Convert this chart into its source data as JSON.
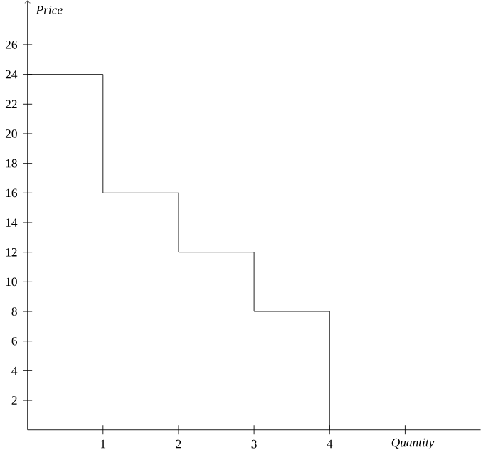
{
  "chart_data": {
    "type": "step",
    "xlabel": "Quantity",
    "ylabel": "Price",
    "x": [
      0,
      1,
      2,
      3,
      4
    ],
    "values": [
      24,
      16,
      12,
      8,
      0
    ],
    "color": "#000000",
    "xlim": [
      0,
      6
    ],
    "ylim": [
      0,
      29
    ],
    "xticks": [
      1,
      2,
      3,
      4,
      {
        "value": 5,
        "label": null
      }
    ],
    "yticks": [
      2,
      4,
      6,
      8,
      10,
      12,
      14,
      16,
      18,
      20,
      22,
      24,
      26
    ],
    "grid": false,
    "marker": "none",
    "line_style": "solid"
  }
}
